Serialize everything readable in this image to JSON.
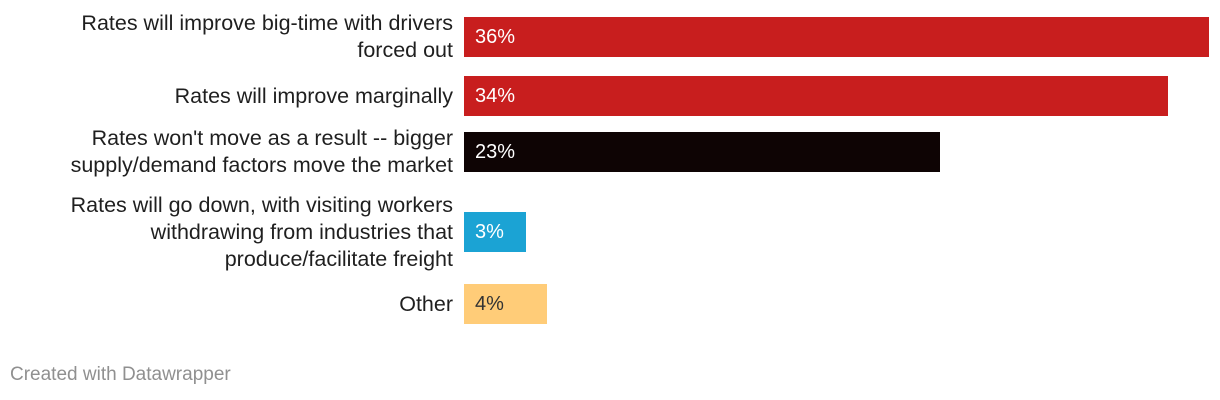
{
  "chart_data": {
    "type": "bar",
    "orientation": "horizontal",
    "categories": [
      [
        "Rates will improve big-time with drivers",
        "forced out"
      ],
      [
        "Rates will improve marginally"
      ],
      [
        "Rates won't move as a result -- bigger",
        "supply/demand factors move the market"
      ],
      [
        "Rates will go down, with visiting workers",
        "withdrawing from industries that",
        "produce/facilitate freight"
      ],
      [
        "Other"
      ]
    ],
    "values": [
      36,
      34,
      23,
      3,
      4
    ],
    "value_labels": [
      "36%",
      "34%",
      "23%",
      "3%",
      "4%"
    ],
    "colors": [
      "#c81e1e",
      "#c81e1e",
      "#0e0404",
      "#1ba3d4",
      "#ffcc78"
    ],
    "value_label_colors": [
      "#ffffff",
      "#ffffff",
      "#ffffff",
      "#ffffff",
      "#333333"
    ],
    "xlim": [
      0,
      36
    ],
    "unit": "%",
    "legend": "none",
    "grid": false
  },
  "footer": {
    "credit": "Created with Datawrapper"
  }
}
